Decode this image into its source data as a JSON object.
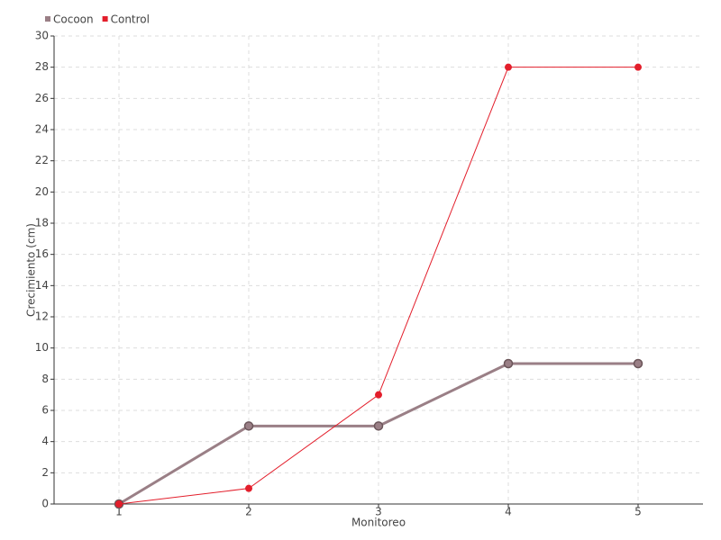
{
  "chart_data": {
    "type": "line",
    "x_label": "Monitoreo",
    "y_label": "Crecimiento (cm)",
    "categories": [
      "1",
      "2",
      "3",
      "4",
      "5"
    ],
    "series": [
      {
        "name": "Cocoon",
        "color": "#9a7f86",
        "values": [
          0,
          5,
          5,
          9,
          9
        ]
      },
      {
        "name": "Control",
        "color": "#e31e2b",
        "values": [
          0,
          1,
          7,
          28,
          28
        ]
      }
    ],
    "ylim": [
      0,
      30
    ],
    "yticks": [
      0,
      2,
      4,
      6,
      8,
      10,
      12,
      14,
      16,
      18,
      20,
      22,
      24,
      26,
      28,
      30
    ],
    "grid": true,
    "legend": "top-left"
  }
}
